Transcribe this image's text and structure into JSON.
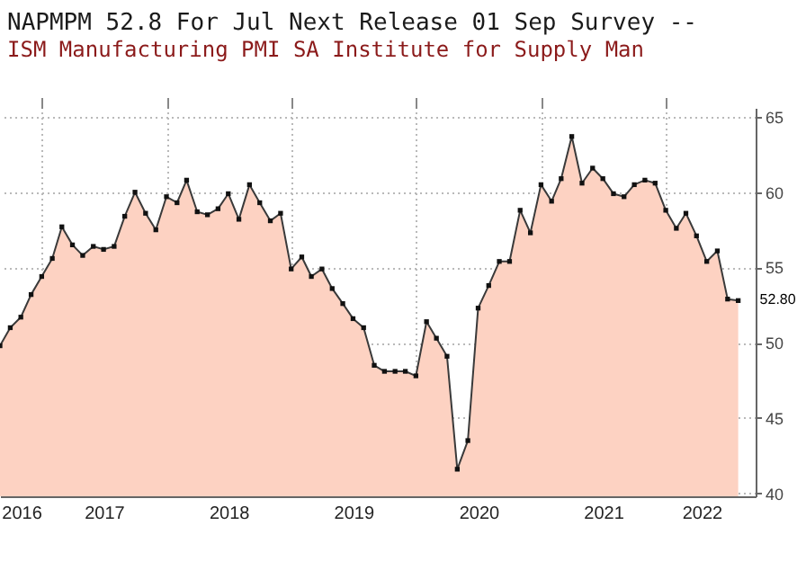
{
  "chart_data": {
    "type": "area",
    "title": "NAPMPM 52.8  For Jul Next Release 01 Sep Survey --",
    "subtitle": "ISM Manufacturing PMI SA       Institute for Supply Man",
    "x": [
      "2016-08-31",
      "2016-09-30",
      "2016-10-31",
      "2016-11-30",
      "2016-12-31",
      "2017-01-31",
      "2017-02-28",
      "2017-03-31",
      "2017-04-30",
      "2017-05-31",
      "2017-06-30",
      "2017-07-31",
      "2017-08-31",
      "2017-09-30",
      "2017-10-31",
      "2017-11-30",
      "2017-12-31",
      "2018-01-31",
      "2018-02-28",
      "2018-03-31",
      "2018-04-30",
      "2018-05-31",
      "2018-06-30",
      "2018-07-31",
      "2018-08-31",
      "2018-09-30",
      "2018-10-31",
      "2018-11-30",
      "2018-12-31",
      "2019-01-31",
      "2019-02-28",
      "2019-03-31",
      "2019-04-30",
      "2019-05-31",
      "2019-06-30",
      "2019-07-31",
      "2019-08-31",
      "2019-09-30",
      "2019-10-31",
      "2019-11-30",
      "2019-12-31",
      "2020-01-31",
      "2020-02-29",
      "2020-03-31",
      "2020-04-30",
      "2020-05-31",
      "2020-06-30",
      "2020-07-31",
      "2020-08-31",
      "2020-09-30",
      "2020-10-31",
      "2020-11-30",
      "2020-12-31",
      "2021-01-31",
      "2021-02-28",
      "2021-03-31",
      "2021-04-30",
      "2021-05-31",
      "2021-06-30",
      "2021-07-31",
      "2021-08-31",
      "2021-09-30",
      "2021-10-31",
      "2021-11-30",
      "2021-12-31",
      "2022-01-31",
      "2022-02-28",
      "2022-03-31",
      "2022-04-30",
      "2022-05-31",
      "2022-06-30",
      "2022-07-31"
    ],
    "series": [
      {
        "color": "#fdd2c2",
        "values": [
          49.8,
          51.0,
          51.7,
          53.2,
          54.4,
          55.6,
          57.7,
          56.5,
          55.8,
          56.4,
          56.2,
          56.4,
          58.4,
          60.0,
          58.6,
          57.5,
          59.7,
          59.3,
          60.8,
          58.7,
          58.5,
          58.9,
          59.9,
          58.2,
          60.5,
          59.3,
          58.1,
          58.6,
          54.9,
          55.7,
          54.4,
          54.9,
          53.6,
          52.6,
          51.6,
          51.0,
          48.5,
          48.1,
          48.1,
          48.1,
          47.8,
          51.4,
          50.3,
          49.1,
          41.6,
          43.5,
          52.3,
          53.8,
          55.4,
          55.4,
          58.8,
          57.3,
          60.5,
          59.4,
          60.9,
          63.7,
          60.6,
          61.6,
          60.9,
          59.9,
          59.7,
          60.5,
          60.8,
          60.6,
          58.8,
          57.6,
          58.6,
          57.1,
          55.4,
          56.1,
          52.9,
          52.8
        ]
      }
    ],
    "xlim": [
      "2016-08-31",
      "2022-09-20"
    ],
    "xticks": [
      {
        "value": "2016-11-01",
        "label": "2016"
      },
      {
        "value": "2017-01-01",
        "label": null
      },
      {
        "value": "2017-07-01",
        "label": "2017"
      },
      {
        "value": "2018-01-01",
        "label": null
      },
      {
        "value": "2018-07-01",
        "label": "2018"
      },
      {
        "value": "2019-01-01",
        "label": null
      },
      {
        "value": "2019-07-01",
        "label": "2019"
      },
      {
        "value": "2020-01-01",
        "label": null
      },
      {
        "value": "2020-07-01",
        "label": "2020"
      },
      {
        "value": "2021-01-01",
        "label": null
      },
      {
        "value": "2021-07-01",
        "label": "2021"
      },
      {
        "value": "2022-01-01",
        "label": null
      },
      {
        "value": "2022-04-15",
        "label": "2022"
      }
    ],
    "ylim": [
      39.8,
      65.6
    ],
    "yticks": [
      40,
      45,
      50,
      55,
      60,
      65
    ],
    "grid": true,
    "marker": "square",
    "annotations": [
      {
        "text": "52.80",
        "x": "2022-07-31",
        "y": 52.8
      }
    ]
  }
}
